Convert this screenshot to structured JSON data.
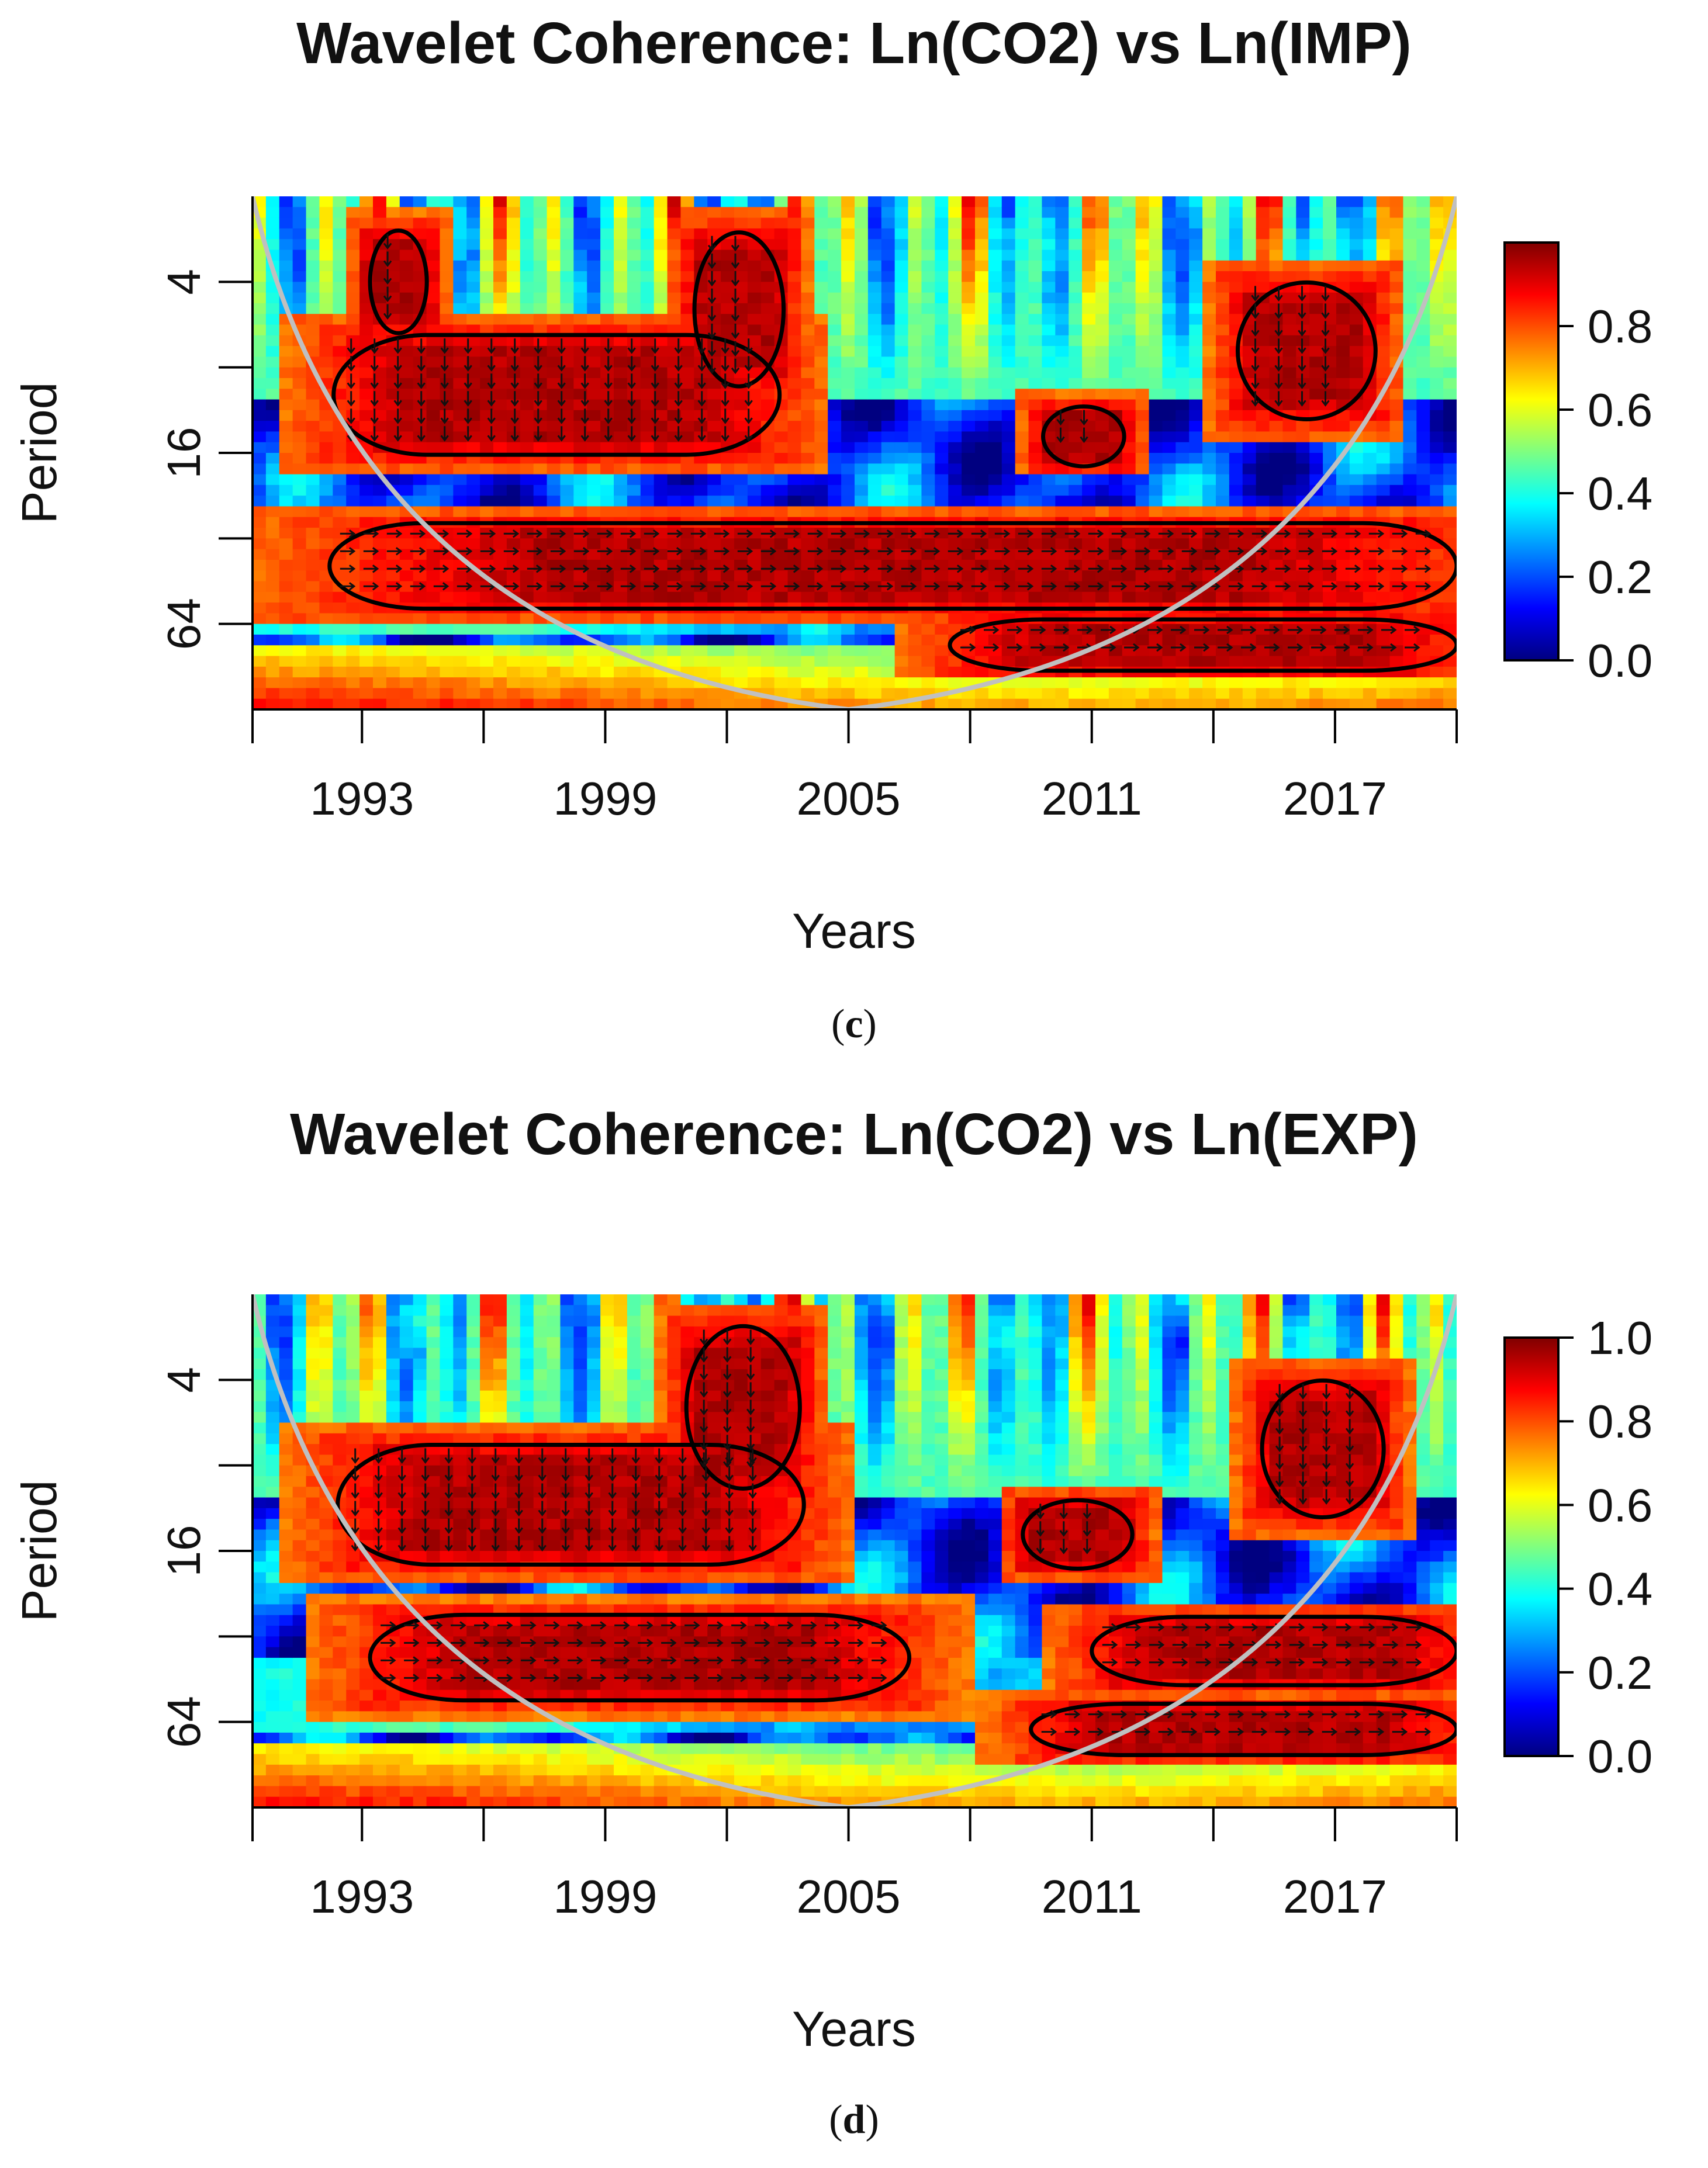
{
  "chart_data": [
    {
      "type": "heatmap",
      "panel_label": "c",
      "title": "Wavelet Coherence: Ln(CO2) vs Ln(IMP)",
      "xlabel": "Years",
      "ylabel": "Period",
      "xlim": [
        1990.3,
        2020.0
      ],
      "x_ticks": [
        1993,
        1999,
        2005,
        2011,
        2017
      ],
      "x_minor_ticks": [
        1990.3,
        1993,
        1996,
        1999,
        2002,
        2005,
        2008,
        2011,
        2014,
        2017,
        2020
      ],
      "y_scale": "log2",
      "ylim": [
        2,
        128
      ],
      "y_ticks": [
        4,
        16,
        64
      ],
      "y_minor_ticks": [
        4,
        8,
        16,
        32,
        64
      ],
      "colorbar": {
        "min": 0.0,
        "max": 1.0,
        "ticks": [
          "0.0",
          "0.2",
          "0.4",
          "0.6",
          "0.8"
        ],
        "tick_values": [
          0.0,
          0.2,
          0.4,
          0.6,
          0.8
        ],
        "colormap": "jet"
      },
      "cone_of_influence": {
        "bottom_year": 2005,
        "bottom_period": 128
      },
      "significant_regions": [
        {
          "name": "long-band",
          "x_start": 1992.2,
          "x_end": 2020.0,
          "period_center": 40,
          "period_width": 1.0
        },
        {
          "name": "low-freq-band",
          "x_start": 2007.5,
          "x_end": 2020.0,
          "period_center": 76,
          "period_width": 0.6
        },
        {
          "name": "early-mid-block",
          "x_start": 1992.3,
          "x_end": 2003.3,
          "period_center": 10,
          "period_width": 1.4
        },
        {
          "name": "strip-1994",
          "x_start": 1993.2,
          "x_end": 1994.6,
          "period_center": 4,
          "period_width": 1.2
        },
        {
          "name": "strip-2002",
          "x_start": 2001.2,
          "x_end": 2003.4,
          "period_center": 5,
          "period_width": 1.8
        },
        {
          "name": "isle-2011",
          "x_start": 2009.8,
          "x_end": 2011.8,
          "period_center": 14,
          "period_width": 0.7
        },
        {
          "name": "block-2017",
          "x_start": 2014.6,
          "x_end": 2018.0,
          "period_center": 7,
          "period_width": 1.6
        }
      ]
    },
    {
      "type": "heatmap",
      "panel_label": "d",
      "title": "Wavelet Coherence: Ln(CO2) vs Ln(EXP)",
      "xlabel": "Years",
      "ylabel": "Period",
      "xlim": [
        1990.3,
        2020.0
      ],
      "x_ticks": [
        1993,
        1999,
        2005,
        2011,
        2017
      ],
      "x_minor_ticks": [
        1990.3,
        1993,
        1996,
        1999,
        2002,
        2005,
        2008,
        2011,
        2014,
        2017,
        2020
      ],
      "y_scale": "log2",
      "ylim": [
        2,
        128
      ],
      "y_ticks": [
        4,
        16,
        64
      ],
      "y_minor_ticks": [
        4,
        8,
        16,
        32,
        64
      ],
      "colorbar": {
        "min": 0.0,
        "max": 1.0,
        "ticks": [
          "0.0",
          "0.2",
          "0.4",
          "0.6",
          "0.8",
          "1.0"
        ],
        "tick_values": [
          0.0,
          0.2,
          0.4,
          0.6,
          0.8,
          1.0
        ],
        "colormap": "jet"
      },
      "cone_of_influence": {
        "bottom_year": 2005,
        "bottom_period": 128
      },
      "significant_regions": [
        {
          "name": "long-band",
          "x_start": 1993.2,
          "x_end": 2006.5,
          "period_center": 38,
          "period_width": 1.0
        },
        {
          "name": "long-band-late",
          "x_start": 2011.0,
          "x_end": 2020.0,
          "period_center": 36,
          "period_width": 0.8
        },
        {
          "name": "low-freq-band",
          "x_start": 2009.5,
          "x_end": 2020.0,
          "period_center": 68,
          "period_width": 0.6
        },
        {
          "name": "early-mid-block",
          "x_start": 1992.4,
          "x_end": 2003.9,
          "period_center": 11,
          "period_width": 1.4
        },
        {
          "name": "strip-2002",
          "x_start": 2001.0,
          "x_end": 2003.8,
          "period_center": 5,
          "period_width": 1.9
        },
        {
          "name": "isle-2011",
          "x_start": 2009.3,
          "x_end": 2012.0,
          "period_center": 14,
          "period_width": 0.8
        },
        {
          "name": "block-2017",
          "x_start": 2015.2,
          "x_end": 2018.2,
          "period_center": 7,
          "period_width": 1.6
        }
      ]
    }
  ]
}
